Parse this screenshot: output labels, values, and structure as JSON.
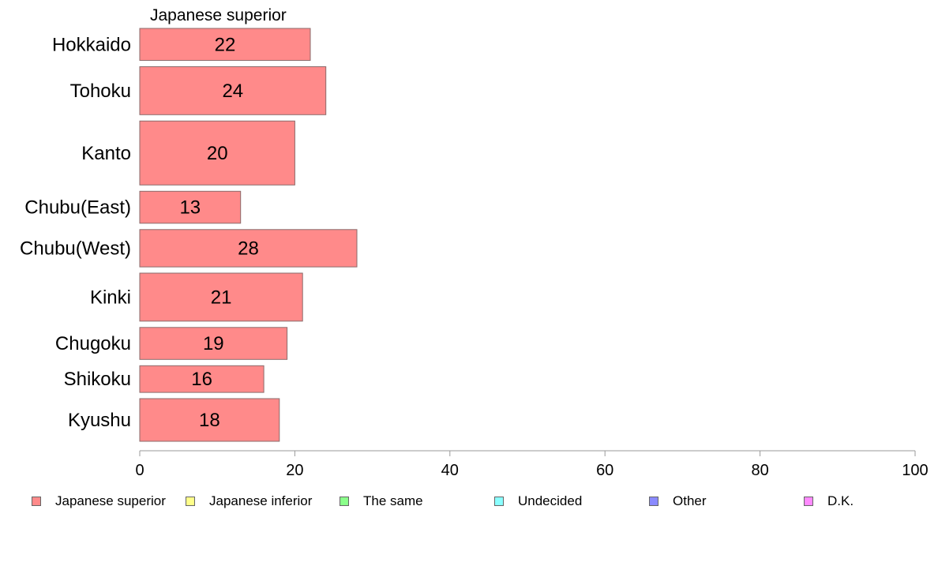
{
  "chart_data": {
    "type": "bar",
    "orientation": "horizontal",
    "title": "Japanese superior",
    "categories": [
      "Hokkaido",
      "Tohoku",
      "Kanto",
      "Chubu(East)",
      "Chubu(West)",
      "Kinki",
      "Chugoku",
      "Shikoku",
      "Kyushu"
    ],
    "series": [
      {
        "name": "Japanese superior",
        "values": [
          22,
          24,
          20,
          13,
          28,
          21,
          19,
          16,
          18
        ],
        "labels": [
          "22",
          "24",
          "20",
          "13",
          "28",
          "21",
          "19",
          "16",
          "18"
        ]
      }
    ],
    "relative_bar_thickness": [
      3.0,
      4.5,
      6.0,
      3.0,
      3.5,
      4.5,
      3.0,
      2.5,
      4.0
    ],
    "xlim": [
      0,
      100
    ],
    "xticks": [
      0,
      20,
      40,
      60,
      80,
      100
    ],
    "xtick_labels": [
      "0",
      "20",
      "40",
      "60",
      "80",
      "100"
    ],
    "grid": false,
    "legend_position": "bottom",
    "legend": [
      {
        "label": "Japanese superior",
        "color": "#FF8A8A"
      },
      {
        "label": "Japanese inferior",
        "color": "#FFFF8A"
      },
      {
        "label": "The same",
        "color": "#8AFF8A"
      },
      {
        "label": "Undecided",
        "color": "#8AFFFF"
      },
      {
        "label": "Other",
        "color": "#8A8AFF"
      },
      {
        "label": "D.K.",
        "color": "#FF8AFF"
      }
    ],
    "bar_color": "#FF8A8A",
    "bar_border_color": "#8A6A6A",
    "axis_color": "#999999"
  }
}
